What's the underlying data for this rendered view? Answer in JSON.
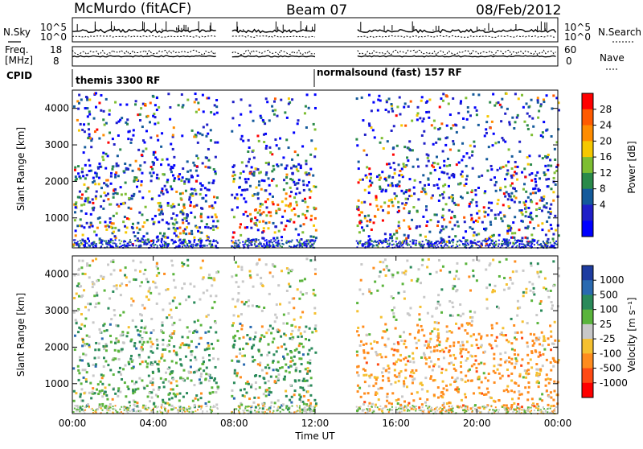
{
  "header": {
    "station": "McMurdo (fitACF)",
    "beam": "Beam 07",
    "date": "08/Feb/2012"
  },
  "status_panels": {
    "nsky_label": "N.Sky",
    "nsky_ticks": [
      "10^5",
      "10^0"
    ],
    "nsearch_label": "N.Search",
    "nsearch_ticks": [
      "10^5",
      "10^0"
    ],
    "freq_label_1": "Freq.",
    "freq_label_2": "[MHz]",
    "freq_ticks": [
      "18",
      "8"
    ],
    "nave_label": "Nave",
    "nave_ticks": [
      "60",
      "0"
    ],
    "cpid_label": "CPID",
    "cpid_1": "themis 3300 RF",
    "cpid_2": "normalsound (fast) 157 RF"
  },
  "chart_data": [
    {
      "type": "heatmap",
      "title": "",
      "ylabel": "Slant Range [km]",
      "xlabel": "",
      "xlim": [
        "00:00",
        "24:00"
      ],
      "ylim": [
        180,
        4500
      ],
      "yticks": [
        1000,
        2000,
        3000,
        4000
      ],
      "data_gaps_ut": [
        [
          "07:10",
          "07:50"
        ],
        [
          "12:00",
          "14:00"
        ]
      ],
      "colorbar": {
        "label": "Power [dB]",
        "ticks": [
          "28",
          "24",
          "20",
          "16",
          "12",
          "8",
          "4"
        ],
        "colors": [
          "#ff0000",
          "#ff5a00",
          "#ff8c00",
          "#f5c800",
          "#7dbe32",
          "#2a8a4a",
          "#145a9b",
          "#2020c8",
          "#0000ff"
        ]
      }
    },
    {
      "type": "heatmap",
      "title": "",
      "ylabel": "Slant Range [km]",
      "xlabel": "Time UT",
      "xlim": [
        "00:00",
        "24:00"
      ],
      "ylim": [
        180,
        4500
      ],
      "yticks": [
        1000,
        2000,
        3000,
        4000
      ],
      "xticks": [
        "00:00",
        "04:00",
        "08:00",
        "12:00",
        "16:00",
        "20:00",
        "00:00"
      ],
      "data_gaps_ut": [
        [
          "07:10",
          "07:50"
        ],
        [
          "12:00",
          "14:00"
        ]
      ],
      "colorbar": {
        "label": "Velocity [m s⁻¹]",
        "ticks": [
          "1000",
          "500",
          "100",
          "25",
          "-25",
          "-100",
          "-500",
          "-1000"
        ],
        "colors": [
          "#1e3ca0",
          "#2a6ab0",
          "#2a8a5a",
          "#5ab43c",
          "#c8c8c8",
          "#f5c030",
          "#ff8c1e",
          "#ff4a14",
          "#ff0000"
        ]
      }
    }
  ]
}
